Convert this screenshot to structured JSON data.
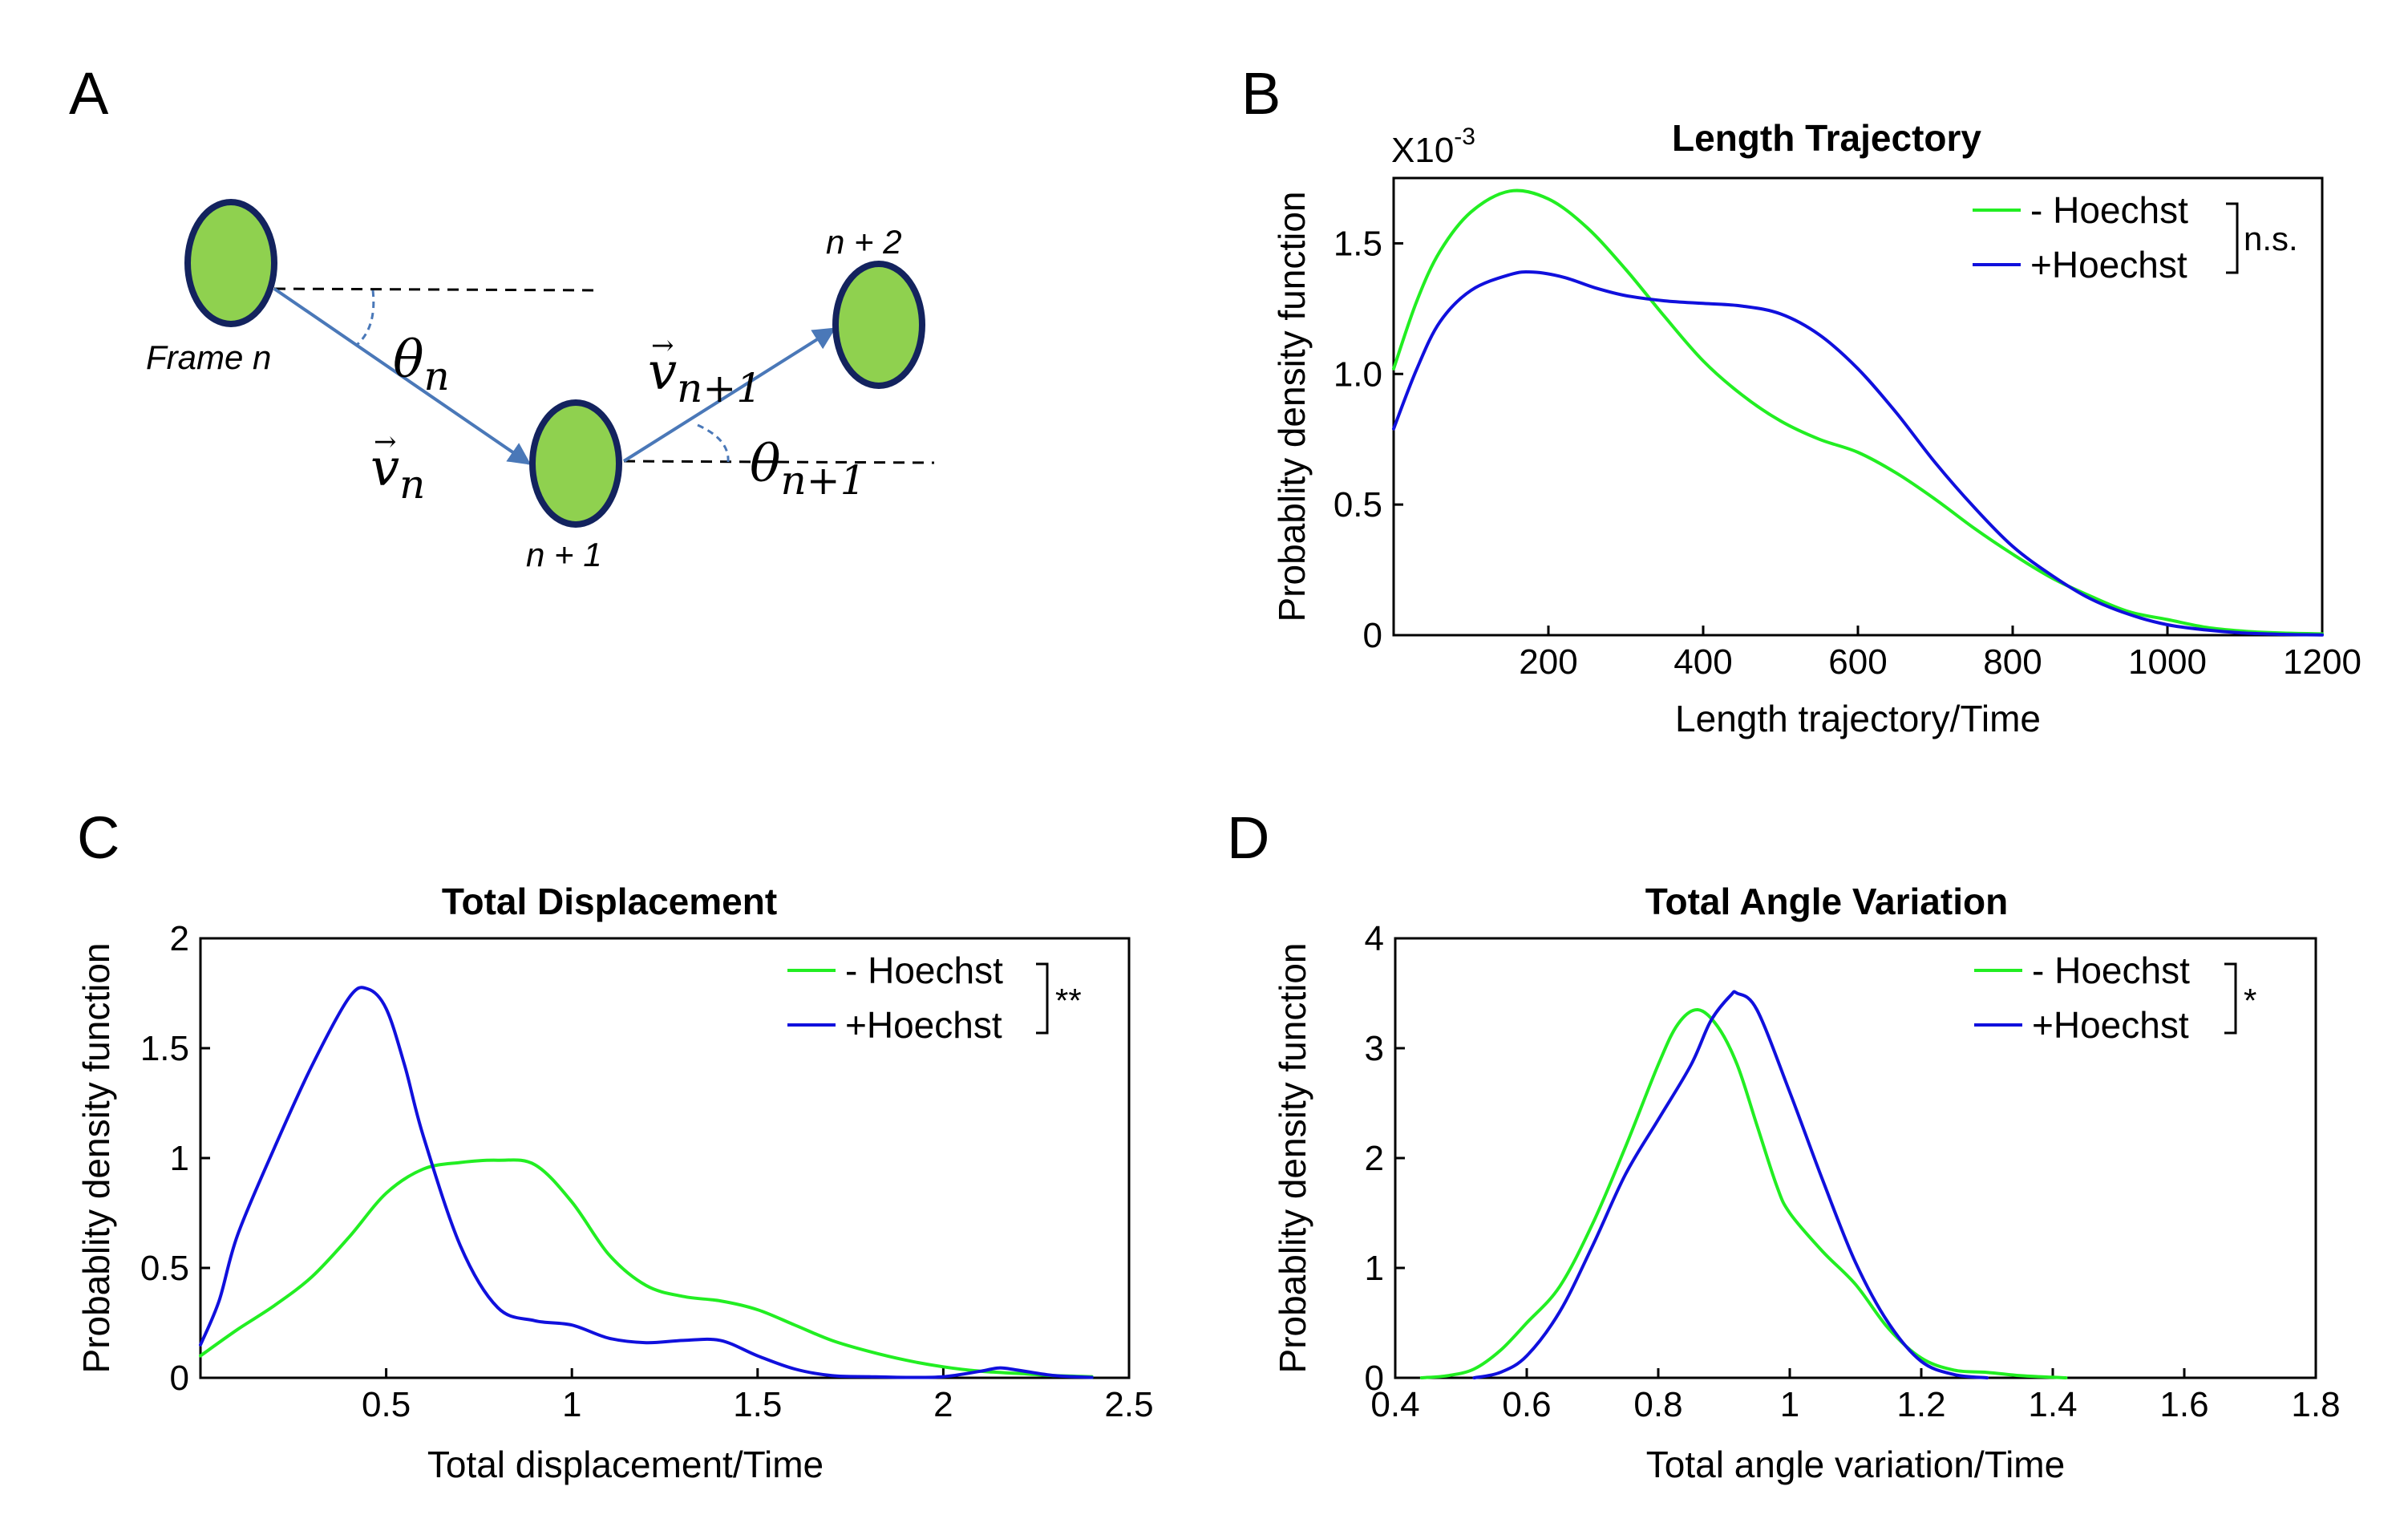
{
  "figure": {
    "colors": {
      "minus_hoechst": "#22ee22",
      "plus_hoechst": "#1010dd",
      "cell_fill": "#8fd14f",
      "cell_stroke": "#13235e",
      "arrow": "#4a78b8",
      "dash": "#000000"
    }
  },
  "panel_a": {
    "letter": "A",
    "frame_n_label": "Frame n",
    "n1_label": "n + 1",
    "n2_label": "n + 2",
    "theta_n": "θ",
    "theta_n_sub": "n",
    "theta_n1": "θ",
    "theta_n1_sub": "n+1",
    "v_n": "v",
    "v_n_sub": "n",
    "v_n1": "v",
    "v_n1_sub": "n+1",
    "vec_arrow": "→"
  },
  "chart_data": [
    {
      "id": "B",
      "letter": "B",
      "type": "line",
      "title": "Length Trajectory",
      "xlabel": "Length trajectory/Time",
      "ylabel": "Probablity density function",
      "xlim": [
        0,
        1200
      ],
      "ylim": [
        0,
        1.75
      ],
      "xticks": [
        200,
        400,
        600,
        800,
        1000,
        1200
      ],
      "xtick_labels": [
        "200",
        "400",
        "600",
        "800",
        "1000",
        "1200"
      ],
      "yticks": [
        0,
        0.5,
        1.0,
        1.5
      ],
      "ytick_labels": [
        "0",
        "0.5",
        "1.0",
        "1.5"
      ],
      "y_scale_base": "X10",
      "y_scale_exp": "-3",
      "significance": "n.s.",
      "legend_position": "top-right",
      "series": [
        {
          "name": "- Hoechst",
          "color": "#22ee22",
          "x": [
            0,
            30,
            60,
            100,
            150,
            200,
            250,
            300,
            350,
            400,
            450,
            500,
            550,
            600,
            650,
            700,
            750,
            800,
            850,
            900,
            950,
            1000,
            1050,
            1100,
            1150,
            1200
          ],
          "y": [
            1.02,
            1.28,
            1.47,
            1.62,
            1.7,
            1.67,
            1.56,
            1.4,
            1.22,
            1.05,
            0.92,
            0.82,
            0.75,
            0.7,
            0.62,
            0.52,
            0.41,
            0.31,
            0.22,
            0.15,
            0.09,
            0.06,
            0.03,
            0.015,
            0.008,
            0.005
          ]
        },
        {
          "name": "+Hoechst",
          "color": "#1010dd",
          "x": [
            0,
            30,
            60,
            100,
            150,
            180,
            220,
            260,
            300,
            350,
            400,
            450,
            500,
            550,
            600,
            650,
            700,
            750,
            800,
            850,
            900,
            950,
            1000,
            1050,
            1100,
            1150,
            1200
          ],
          "y": [
            0.79,
            1.02,
            1.2,
            1.32,
            1.38,
            1.39,
            1.37,
            1.33,
            1.3,
            1.28,
            1.27,
            1.26,
            1.23,
            1.15,
            1.02,
            0.85,
            0.66,
            0.49,
            0.34,
            0.23,
            0.14,
            0.08,
            0.04,
            0.02,
            0.008,
            0.003,
            0.001
          ]
        }
      ]
    },
    {
      "id": "C",
      "letter": "C",
      "type": "line",
      "title": "Total Displacement",
      "xlabel": "Total displacement/Time",
      "ylabel": "Probablity density function",
      "xlim": [
        0,
        2.5
      ],
      "ylim": [
        0,
        2
      ],
      "xticks": [
        0.5,
        1,
        1.5,
        2,
        2.5
      ],
      "xtick_labels": [
        "0.5",
        "1",
        "1.5",
        "2",
        "2.5"
      ],
      "yticks": [
        0,
        0.5,
        1,
        1.5,
        2
      ],
      "ytick_labels": [
        "0",
        "0.5",
        "1",
        "1.5",
        "2"
      ],
      "significance": "**",
      "legend_position": "top-right",
      "series": [
        {
          "name": "- Hoechst",
          "color": "#22ee22",
          "x": [
            0,
            0.1,
            0.2,
            0.3,
            0.4,
            0.5,
            0.6,
            0.7,
            0.8,
            0.9,
            1.0,
            1.1,
            1.2,
            1.3,
            1.4,
            1.5,
            1.6,
            1.7,
            1.8,
            1.9,
            2.0,
            2.1,
            2.2,
            2.3,
            2.4
          ],
          "y": [
            0.1,
            0.22,
            0.33,
            0.46,
            0.64,
            0.84,
            0.95,
            0.98,
            0.99,
            0.97,
            0.8,
            0.56,
            0.42,
            0.37,
            0.35,
            0.31,
            0.24,
            0.17,
            0.12,
            0.08,
            0.05,
            0.03,
            0.02,
            0.01,
            0.005
          ]
        },
        {
          "name": "+Hoechst",
          "color": "#1010dd",
          "x": [
            0,
            0.05,
            0.1,
            0.2,
            0.3,
            0.4,
            0.45,
            0.5,
            0.55,
            0.6,
            0.7,
            0.8,
            0.9,
            1.0,
            1.1,
            1.2,
            1.3,
            1.4,
            1.5,
            1.6,
            1.7,
            1.8,
            1.9,
            2.0,
            2.1,
            2.15,
            2.2,
            2.3,
            2.4
          ],
          "y": [
            0.15,
            0.35,
            0.65,
            1.05,
            1.42,
            1.73,
            1.77,
            1.68,
            1.42,
            1.1,
            0.6,
            0.32,
            0.26,
            0.24,
            0.18,
            0.16,
            0.17,
            0.17,
            0.1,
            0.04,
            0.01,
            0.005,
            0.002,
            0.005,
            0.03,
            0.045,
            0.035,
            0.01,
            0.002
          ]
        }
      ]
    },
    {
      "id": "D",
      "letter": "D",
      "type": "line",
      "title": "Total Angle Variation",
      "xlabel": "Total angle variation/Time",
      "ylabel": "Probablity density function",
      "xlim": [
        0.4,
        1.8
      ],
      "ylim": [
        0,
        4
      ],
      "xticks": [
        0.4,
        0.6,
        0.8,
        1,
        1.2,
        1.4,
        1.6,
        1.8
      ],
      "xtick_labels": [
        "0.4",
        "0.6",
        "0.8",
        "1",
        "1.2",
        "1.4",
        "1.6",
        "1.8"
      ],
      "yticks": [
        0,
        1,
        2,
        3,
        4
      ],
      "ytick_labels": [
        "0",
        "1",
        "2",
        "3",
        "4"
      ],
      "significance": "*",
      "legend_position": "top-right",
      "series": [
        {
          "name": "- Hoechst",
          "color": "#22ee22",
          "x": [
            0.44,
            0.48,
            0.52,
            0.56,
            0.6,
            0.65,
            0.7,
            0.75,
            0.8,
            0.83,
            0.86,
            0.89,
            0.92,
            0.95,
            0.98,
            1.0,
            1.05,
            1.1,
            1.15,
            1.2,
            1.25,
            1.3,
            1.35,
            1.4,
            1.42
          ],
          "y": [
            0.0,
            0.02,
            0.08,
            0.25,
            0.5,
            0.83,
            1.4,
            2.1,
            2.85,
            3.22,
            3.35,
            3.2,
            2.85,
            2.3,
            1.75,
            1.5,
            1.15,
            0.85,
            0.45,
            0.18,
            0.07,
            0.05,
            0.02,
            0.005,
            0.0
          ]
        },
        {
          "name": "+Hoechst",
          "color": "#1010dd",
          "x": [
            0.52,
            0.56,
            0.6,
            0.65,
            0.7,
            0.75,
            0.8,
            0.85,
            0.88,
            0.91,
            0.92,
            0.95,
            1.0,
            1.05,
            1.1,
            1.15,
            1.2,
            1.25,
            1.3
          ],
          "y": [
            0.0,
            0.05,
            0.2,
            0.6,
            1.2,
            1.85,
            2.35,
            2.85,
            3.25,
            3.48,
            3.5,
            3.35,
            2.6,
            1.8,
            1.05,
            0.5,
            0.15,
            0.03,
            0.0
          ]
        }
      ]
    }
  ]
}
